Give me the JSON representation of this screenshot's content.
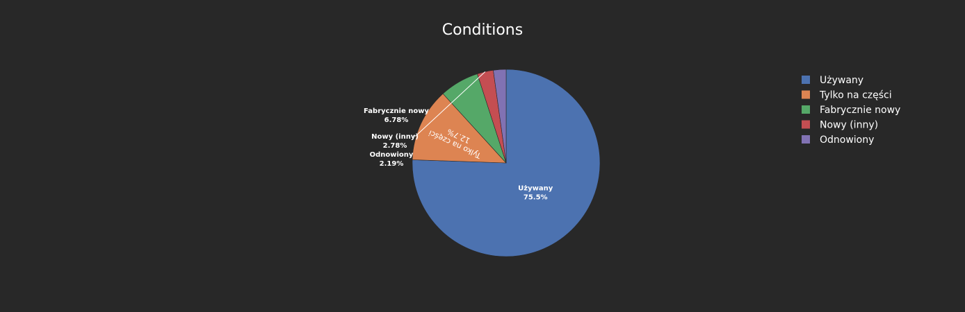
{
  "chart_data": {
    "type": "pie",
    "title": "Conditions",
    "slices": [
      {
        "label": "Używany",
        "value": 75.5,
        "display": "75.5%",
        "color": "#4c72b0"
      },
      {
        "label": "Tylko na części",
        "value": 12.7,
        "display": "12.7%",
        "color": "#dd8452"
      },
      {
        "label": "Fabrycznie nowy",
        "value": 6.78,
        "display": "6.78%",
        "color": "#55a868"
      },
      {
        "label": "Nowy (inny)",
        "value": 2.78,
        "display": "2.78%",
        "color": "#c44e52"
      },
      {
        "label": "Odnowiony",
        "value": 2.19,
        "display": "2.19%",
        "color": "#8172b3"
      }
    ],
    "legend_position": "top-right",
    "direction": "clockwise",
    "background": "#282828"
  }
}
